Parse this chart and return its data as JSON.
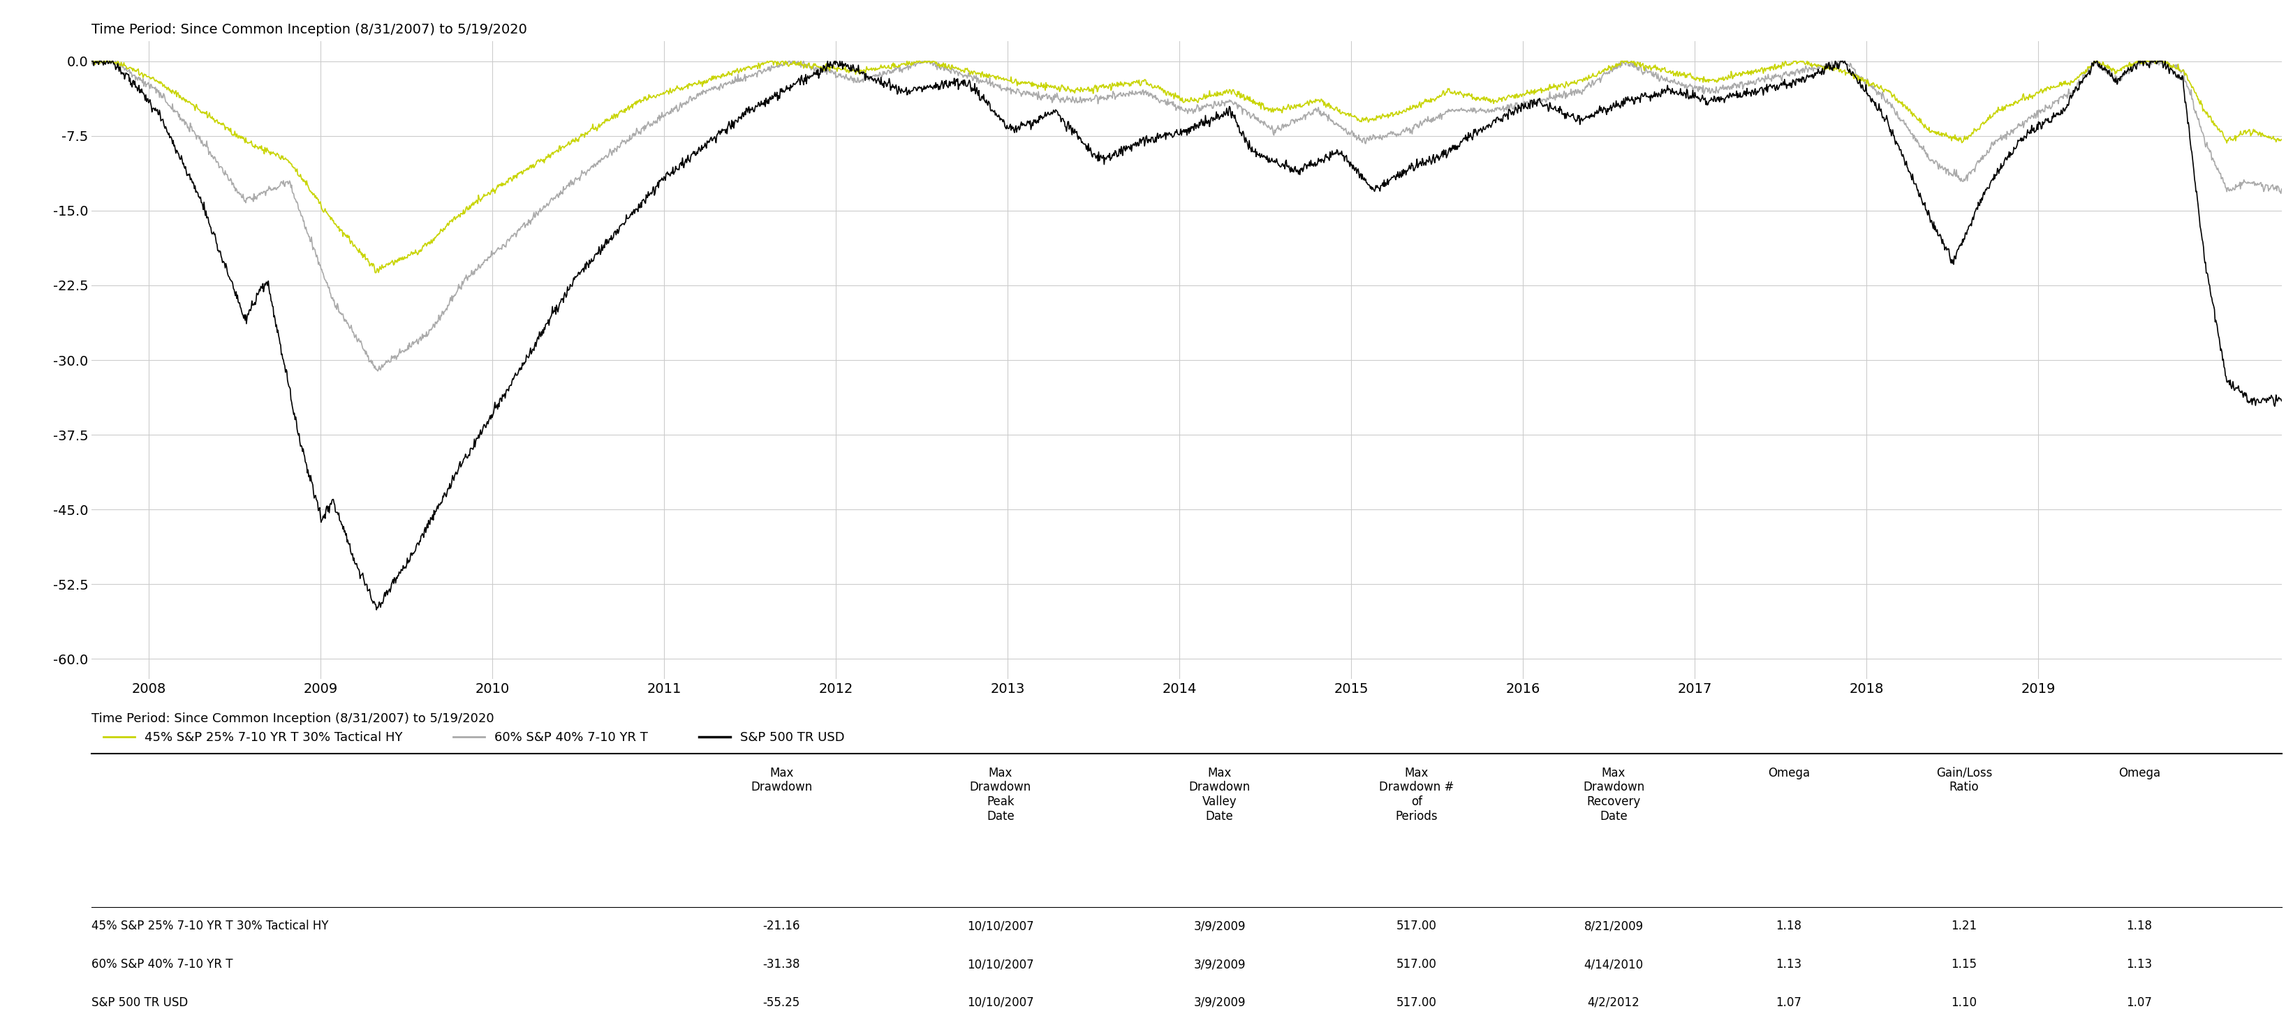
{
  "title_top": "Time Period: Since Common Inception (8/31/2007) to 5/19/2020",
  "legend_label1": "45% S&P 25% 7-10 YR T 30% Tactical HY",
  "legend_label2": "60% S&P 40% 7-10 YR T",
  "legend_label3": "S&P 500 TR USD",
  "legend_color1": "#c8d400",
  "legend_color2": "#aaaaaa",
  "legend_color3": "#000000",
  "ylim": [
    -62,
    2
  ],
  "yticks": [
    0.0,
    -7.5,
    -15.0,
    -22.5,
    -30.0,
    -37.5,
    -45.0,
    -52.5,
    -60.0
  ],
  "xlabel_years": [
    "2008",
    "2009",
    "2010",
    "2011",
    "2012",
    "2013",
    "2014",
    "2015",
    "2016",
    "2017",
    "2018",
    "2019"
  ],
  "table_title": "Time Period: Since Common Inception (8/31/2007) to 5/19/2020",
  "col_headers": [
    "",
    "Max\nDrawdown",
    "Max\nDrawdown\nPeak\nDate",
    "Max\nDrawdown\nValley\nDate",
    "Max\nDrawdown #\nof\nPeriods",
    "Max\nDrawdown\nRecovery\nDate",
    "Omega",
    "Gain/Loss\nRatio",
    "Omega"
  ],
  "row1_label": "45% S&P 25% 7-10 YR T 30% Tactical HY",
  "row2_label": "60% S&P 40% 7-10 YR T",
  "row3_label": "S&P 500 TR USD",
  "table_data": [
    [
      "-21.16",
      "10/10/2007",
      "3/9/2009",
      "517.00",
      "8/21/2009",
      "1.18",
      "1.21",
      "1.18"
    ],
    [
      "-31.38",
      "10/10/2007",
      "3/9/2009",
      "517.00",
      "4/14/2010",
      "1.13",
      "1.15",
      "1.13"
    ],
    [
      "-55.25",
      "10/10/2007",
      "3/9/2009",
      "517.00",
      "4/2/2012",
      "1.07",
      "1.10",
      "1.07"
    ]
  ],
  "bg_color": "#ffffff",
  "grid_color": "#cccccc",
  "line_color1": "#c8d400",
  "line_color2": "#aaaaaa",
  "line_color3": "#000000"
}
